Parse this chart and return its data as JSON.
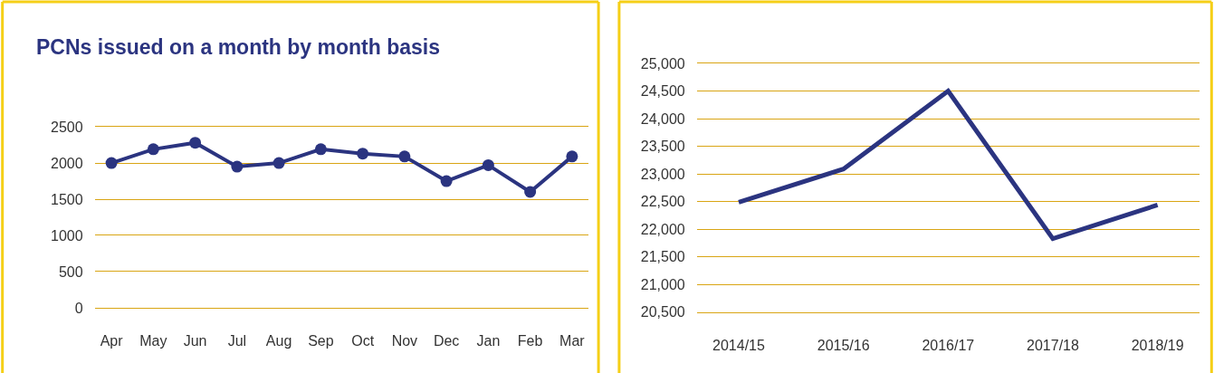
{
  "chart_data": [
    {
      "type": "line",
      "title": "PCNs issued on a month by month basis",
      "categories": [
        "Apr",
        "May",
        "Jun",
        "Jul",
        "Aug",
        "Sep",
        "Oct",
        "Nov",
        "Dec",
        "Jan",
        "Feb",
        "Mar"
      ],
      "series": [
        {
          "color": "#2b3480",
          "values": [
            2000,
            2190,
            2280,
            1950,
            2000,
            2190,
            2130,
            2090,
            1750,
            1970,
            1600,
            2090
          ]
        }
      ],
      "ylim": [
        0,
        2500
      ],
      "yticks": [
        0,
        500,
        1000,
        1500,
        2000,
        2500
      ],
      "grid": "y",
      "marker": "circle"
    },
    {
      "type": "line",
      "categories": [
        "2014/15",
        "2015/16",
        "2016/17",
        "2017/18",
        "2018/19"
      ],
      "series": [
        {
          "color": "#2b3480",
          "values": [
            22490,
            23090,
            24500,
            21830,
            22440
          ]
        }
      ],
      "ylim": [
        20500,
        25000
      ],
      "yticks": [
        {
          "value": 20500,
          "label": "20,500"
        },
        {
          "value": 21000,
          "label": "21,000"
        },
        {
          "value": 21500,
          "label": "21,500"
        },
        {
          "value": 22000,
          "label": "22,000"
        },
        {
          "value": 22500,
          "label": "22,500"
        },
        {
          "value": 23000,
          "label": "23,000"
        },
        {
          "value": 23500,
          "label": "23,500"
        },
        {
          "value": 24000,
          "label": "24,000"
        },
        {
          "value": 24500,
          "label": "24,500"
        },
        {
          "value": 25000,
          "label": "25,000"
        }
      ],
      "grid": "y"
    }
  ]
}
